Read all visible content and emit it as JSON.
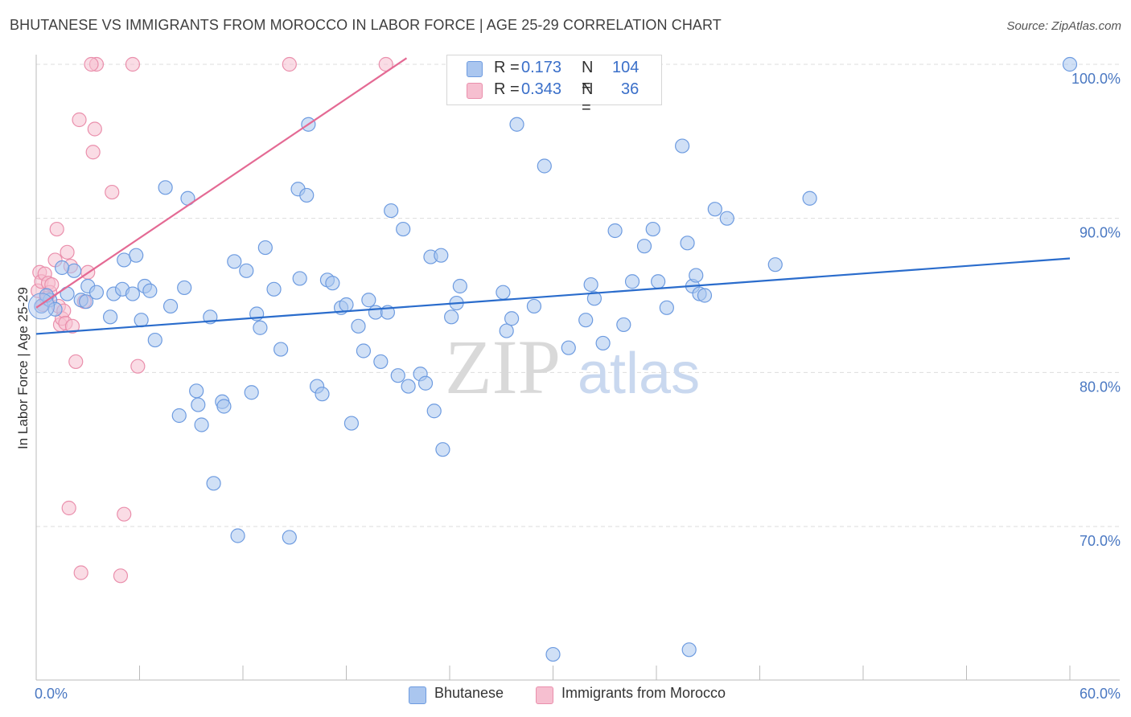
{
  "title": "BHUTANESE VS IMMIGRANTS FROM MOROCCO IN LABOR FORCE | AGE 25-29 CORRELATION CHART",
  "source": "Source: ZipAtlas.com",
  "watermark": {
    "zip": "ZIP",
    "atlas": "atlas"
  },
  "colors": {
    "blue_fill": "#aac6ef",
    "blue_stroke": "#6d9be0",
    "blue_line": "#2a6ccc",
    "pink_fill": "#f6bfd0",
    "pink_stroke": "#ea8fac",
    "pink_line": "#e46a94",
    "tick_label": "#4a78c2",
    "grid": "#dddddd"
  },
  "legend": {
    "rows": [
      {
        "r_label": "R =",
        "r_value": "0.173",
        "n_label": "N =",
        "n_value": "104"
      },
      {
        "r_label": "R =",
        "r_value": "0.343",
        "n_label": "N =",
        "n_value": "36"
      }
    ]
  },
  "bottom_legend": [
    "Bhutanese",
    "Immigrants from Morocco"
  ],
  "chart_data": {
    "type": "scatter",
    "title": "BHUTANESE VS IMMIGRANTS FROM MOROCCO IN LABOR FORCE | AGE 25-29 CORRELATION CHART",
    "xlabel": "",
    "ylabel": "In Labor Force | Age 25-29",
    "xlim": [
      0,
      60
    ],
    "ylim": [
      61,
      100.5
    ],
    "x_tick_labels": [
      "0.0%",
      "60.0%"
    ],
    "y_ticks": [
      70,
      80,
      90,
      100
    ],
    "y_tick_labels": [
      "70.0%",
      "80.0%",
      "90.0%",
      "100.0%"
    ],
    "grid": true,
    "series": [
      {
        "name": "Bhutanese",
        "color": "#6d9be0",
        "trend": {
          "x": [
            0,
            60
          ],
          "y": [
            82.5,
            87.4
          ]
        },
        "points": [
          [
            0.3,
            84.3
          ],
          [
            0.8,
            84.7
          ],
          [
            1.1,
            84.1
          ],
          [
            1.8,
            85.1
          ],
          [
            2.2,
            86.6
          ],
          [
            2.6,
            84.7
          ],
          [
            3.0,
            85.6
          ],
          [
            3.5,
            85.2
          ],
          [
            4.3,
            83.6
          ],
          [
            4.5,
            85.1
          ],
          [
            5.0,
            85.4
          ],
          [
            5.1,
            87.3
          ],
          [
            5.6,
            85.1
          ],
          [
            5.8,
            87.6
          ],
          [
            6.1,
            83.4
          ],
          [
            6.3,
            85.6
          ],
          [
            6.6,
            85.3
          ],
          [
            6.9,
            82.1
          ],
          [
            7.5,
            92.0
          ],
          [
            7.8,
            84.3
          ],
          [
            8.3,
            77.2
          ],
          [
            8.6,
            85.5
          ],
          [
            8.8,
            91.3
          ],
          [
            9.3,
            78.8
          ],
          [
            9.4,
            77.9
          ],
          [
            9.6,
            76.6
          ],
          [
            10.1,
            83.6
          ],
          [
            10.3,
            72.8
          ],
          [
            10.8,
            78.1
          ],
          [
            10.9,
            77.8
          ],
          [
            11.5,
            87.2
          ],
          [
            11.7,
            69.4
          ],
          [
            12.2,
            86.6
          ],
          [
            12.5,
            78.7
          ],
          [
            12.8,
            83.8
          ],
          [
            13.0,
            82.9
          ],
          [
            13.3,
            88.1
          ],
          [
            13.8,
            85.4
          ],
          [
            14.2,
            81.5
          ],
          [
            14.7,
            69.3
          ],
          [
            15.2,
            91.9
          ],
          [
            15.3,
            86.1
          ],
          [
            15.7,
            91.5
          ],
          [
            15.8,
            96.1
          ],
          [
            16.3,
            79.1
          ],
          [
            16.6,
            78.6
          ],
          [
            16.9,
            86.0
          ],
          [
            17.2,
            85.8
          ],
          [
            17.7,
            84.2
          ],
          [
            18.0,
            84.4
          ],
          [
            18.3,
            76.7
          ],
          [
            18.7,
            83.0
          ],
          [
            19.0,
            81.4
          ],
          [
            19.3,
            84.7
          ],
          [
            19.7,
            83.9
          ],
          [
            20.0,
            80.7
          ],
          [
            20.6,
            90.5
          ],
          [
            21.0,
            79.8
          ],
          [
            21.3,
            89.3
          ],
          [
            21.6,
            79.1
          ],
          [
            22.3,
            79.9
          ],
          [
            22.6,
            79.3
          ],
          [
            22.9,
            87.5
          ],
          [
            23.1,
            77.5
          ],
          [
            23.5,
            87.6
          ],
          [
            23.6,
            75.0
          ],
          [
            24.1,
            83.6
          ],
          [
            24.6,
            85.6
          ],
          [
            27.1,
            85.2
          ],
          [
            27.3,
            82.7
          ],
          [
            27.6,
            83.5
          ],
          [
            27.9,
            96.1
          ],
          [
            28.9,
            84.3
          ],
          [
            29.5,
            93.4
          ],
          [
            30.9,
            81.6
          ],
          [
            31.9,
            83.4
          ],
          [
            32.2,
            85.7
          ],
          [
            32.4,
            84.8
          ],
          [
            32.9,
            81.9
          ],
          [
            33.6,
            89.2
          ],
          [
            34.1,
            83.1
          ],
          [
            34.6,
            85.9
          ],
          [
            35.3,
            88.2
          ],
          [
            35.8,
            89.3
          ],
          [
            36.1,
            85.9
          ],
          [
            36.6,
            84.2
          ],
          [
            37.5,
            94.7
          ],
          [
            37.8,
            88.4
          ],
          [
            38.1,
            85.6
          ],
          [
            38.3,
            86.3
          ],
          [
            38.5,
            85.1
          ],
          [
            38.8,
            85.0
          ],
          [
            39.4,
            90.6
          ],
          [
            40.1,
            90.0
          ],
          [
            42.9,
            87.0
          ],
          [
            44.9,
            91.3
          ],
          [
            30.0,
            61.7
          ],
          [
            37.9,
            62.0
          ],
          [
            60.0,
            100.0
          ],
          [
            1.5,
            86.8
          ],
          [
            0.6,
            85.0
          ],
          [
            2.9,
            84.6
          ],
          [
            20.4,
            83.9
          ],
          [
            24.4,
            84.5
          ]
        ]
      },
      {
        "name": "Immigrants from Morocco",
        "color": "#ea8fac",
        "trend": {
          "x": [
            0,
            21.5
          ],
          "y": [
            84.2,
            100.4
          ]
        },
        "points": [
          [
            0.1,
            85.3
          ],
          [
            0.2,
            86.5
          ],
          [
            0.3,
            85.9
          ],
          [
            0.4,
            84.4
          ],
          [
            0.5,
            86.4
          ],
          [
            0.7,
            85.8
          ],
          [
            0.8,
            85.2
          ],
          [
            0.9,
            85.7
          ],
          [
            1.1,
            87.3
          ],
          [
            1.2,
            89.3
          ],
          [
            1.3,
            84.3
          ],
          [
            1.4,
            83.1
          ],
          [
            1.5,
            83.5
          ],
          [
            1.6,
            84.0
          ],
          [
            1.7,
            83.2
          ],
          [
            1.8,
            87.8
          ],
          [
            1.9,
            71.2
          ],
          [
            2.0,
            86.9
          ],
          [
            2.1,
            83.0
          ],
          [
            2.3,
            80.7
          ],
          [
            2.5,
            96.4
          ],
          [
            2.6,
            67.0
          ],
          [
            2.8,
            84.6
          ],
          [
            3.0,
            86.5
          ],
          [
            3.3,
            94.3
          ],
          [
            3.4,
            95.8
          ],
          [
            3.5,
            100.0
          ],
          [
            3.2,
            100.0
          ],
          [
            4.4,
            91.7
          ],
          [
            4.9,
            66.8
          ],
          [
            5.1,
            70.8
          ],
          [
            5.6,
            100.0
          ],
          [
            5.9,
            80.4
          ],
          [
            14.7,
            100.0
          ],
          [
            20.3,
            100.0
          ],
          [
            0.6,
            84.8
          ]
        ]
      }
    ]
  }
}
